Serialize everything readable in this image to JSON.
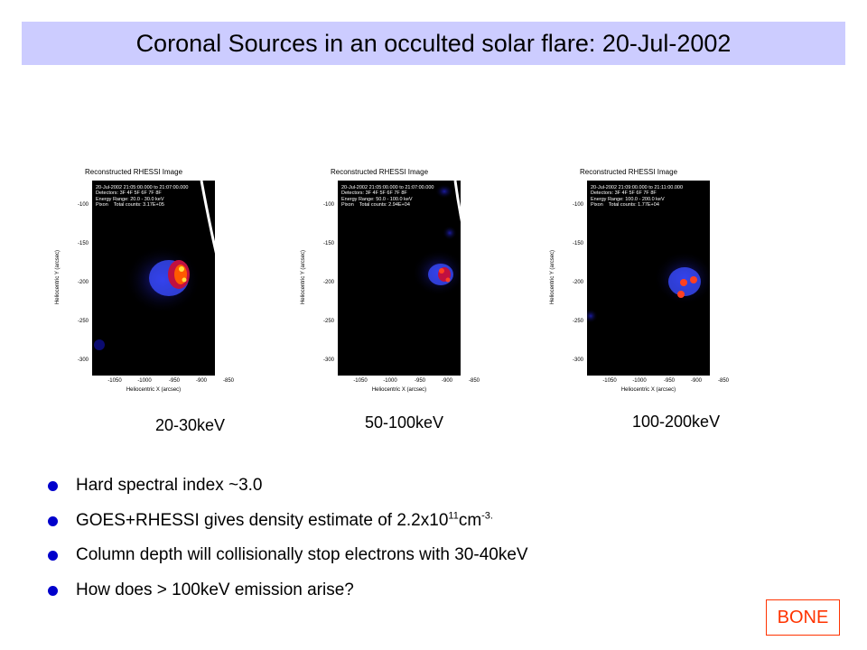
{
  "title": "Coronal Sources in an occulted solar flare: 20-Jul-2002",
  "panels": [
    {
      "plot_title": "Reconstructed RHESSI Image",
      "info": [
        "20-Jul-2002 21:05:00.000 to 21:07:00.000",
        "Detectors: 3F 4F 5F 6F 7F 8F",
        "Energy Range: 20.0 - 30.0 keV",
        "Pixon    Total counts: 3.17E+05"
      ],
      "y_label": "Heliocentric Y (arcsec)",
      "x_label": "Heliocentric X (arcsec)",
      "y_ticks": [
        "-100",
        "-150",
        "-200",
        "-250",
        "-300"
      ],
      "x_ticks": [
        "-1050",
        "-1000",
        "-950",
        "-900",
        "-850"
      ],
      "energy_label": "20-30keV"
    },
    {
      "plot_title": "Reconstructed RHESSI Image",
      "info": [
        "20-Jul-2002 21:05:00.000 to 21:07:00.000",
        "Detectors: 3F 4F 5F 6F 7F 8F",
        "Energy Range: 50.0 - 100.0 keV",
        "Pixon    Total counts: 2.94E+04"
      ],
      "y_label": "Heliocentric Y (arcsec)",
      "x_label": "Heliocentric X (arcsec)",
      "y_ticks": [
        "-100",
        "-150",
        "-200",
        "-250",
        "-300"
      ],
      "x_ticks": [
        "-1050",
        "-1000",
        "-950",
        "-900",
        "-850"
      ],
      "energy_label": "50-100keV"
    },
    {
      "plot_title": "Reconstructed RHESSI Image",
      "info": [
        "20-Jul-2002 21:09:00.000 to 21:11:00.000",
        "Detectors: 3F 4F 5F 6F 7F 8F",
        "Energy Range: 100.0 - 200.0 keV",
        "Pixon    Total counts: 1.77E+04"
      ],
      "y_label": "Heliocentric Y (arcsec)",
      "x_label": "Heliocentric X (arcsec)",
      "y_ticks": [
        "-100",
        "-150",
        "-200",
        "-250",
        "-300"
      ],
      "x_ticks": [
        "-1050",
        "-1000",
        "-950",
        "-900",
        "-850"
      ],
      "energy_label": "100-200keV"
    }
  ],
  "bullets": {
    "b1": "Hard spectral index ~3.0",
    "b2_pre": "GOES+RHESSI gives density estimate of 2.2x10",
    "b2_sup1": "11",
    "b2_mid": "cm",
    "b2_sup2": "-3.",
    "b3": "Column depth will collisionally stop electrons with 30-40keV",
    "b4": "How does > 100keV emission arise?"
  },
  "badge": "BONE",
  "colors": {
    "title_bg": "#ccccff",
    "bullet": "#0000cc",
    "badge": "#ff3300"
  }
}
